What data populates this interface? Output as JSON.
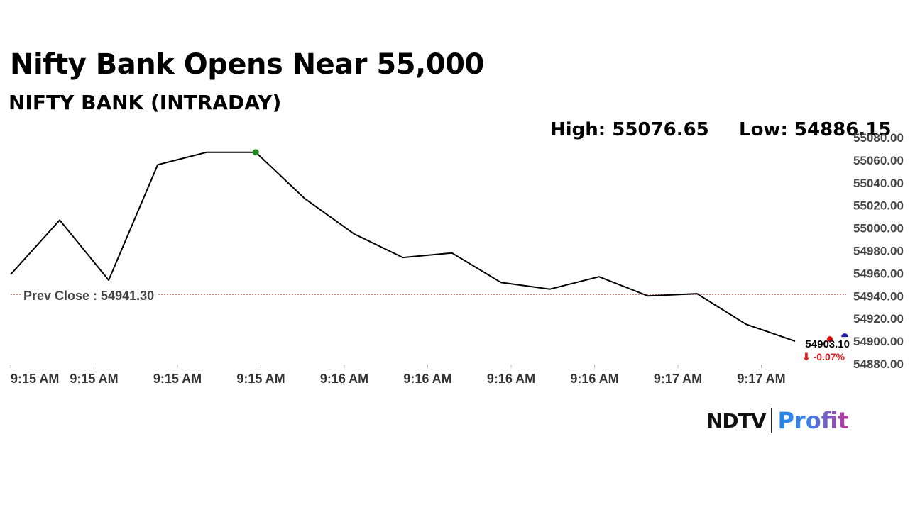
{
  "headline": "Nifty Bank Opens Near 55,000",
  "subtitle": "NIFTY BANK (INTRADAY)",
  "stats": {
    "high_label": "High: 55076.65",
    "low_label": "Low: 54886.15"
  },
  "logo": {
    "ndtv": "NDTV",
    "profit": "Profit"
  },
  "chart_data": {
    "type": "line",
    "title": "NIFTY BANK (INTRADAY)",
    "xlabel": "",
    "ylabel": "",
    "x_tick_labels": [
      "9:15 AM",
      "9:15 AM",
      "9:15 AM",
      "9:15 AM",
      "9:16 AM",
      "9:16 AM",
      "9:16 AM",
      "9:16 AM",
      "9:17 AM",
      "9:17 AM"
    ],
    "y_tick_labels": [
      "54880.00",
      "54900.00",
      "54920.00",
      "54940.00",
      "54960.00",
      "54980.00",
      "55000.00",
      "55020.00",
      "55040.00",
      "55060.00",
      "55080.00"
    ],
    "ylim": [
      54880,
      55080
    ],
    "series": [
      {
        "values": [
          54959,
          55007,
          54954,
          55056,
          55067,
          55067,
          55026,
          54995,
          54974,
          54978,
          54952,
          54946,
          54957,
          54940,
          54942,
          54915,
          54900
        ]
      }
    ],
    "reference_line": {
      "label": "Prev Close : 54941.30",
      "value": 54941.3
    },
    "last_point": {
      "value_label": "54903.10",
      "change_label": "⬇ -0.07%",
      "value": 54903.1
    },
    "grid": false,
    "line_color": "#000000",
    "high_marker_color": "#1f8a1f",
    "last_marker_color": "#e00000",
    "end_marker_color": "#1a1aa8",
    "prev_close_color": "#d9534f"
  }
}
